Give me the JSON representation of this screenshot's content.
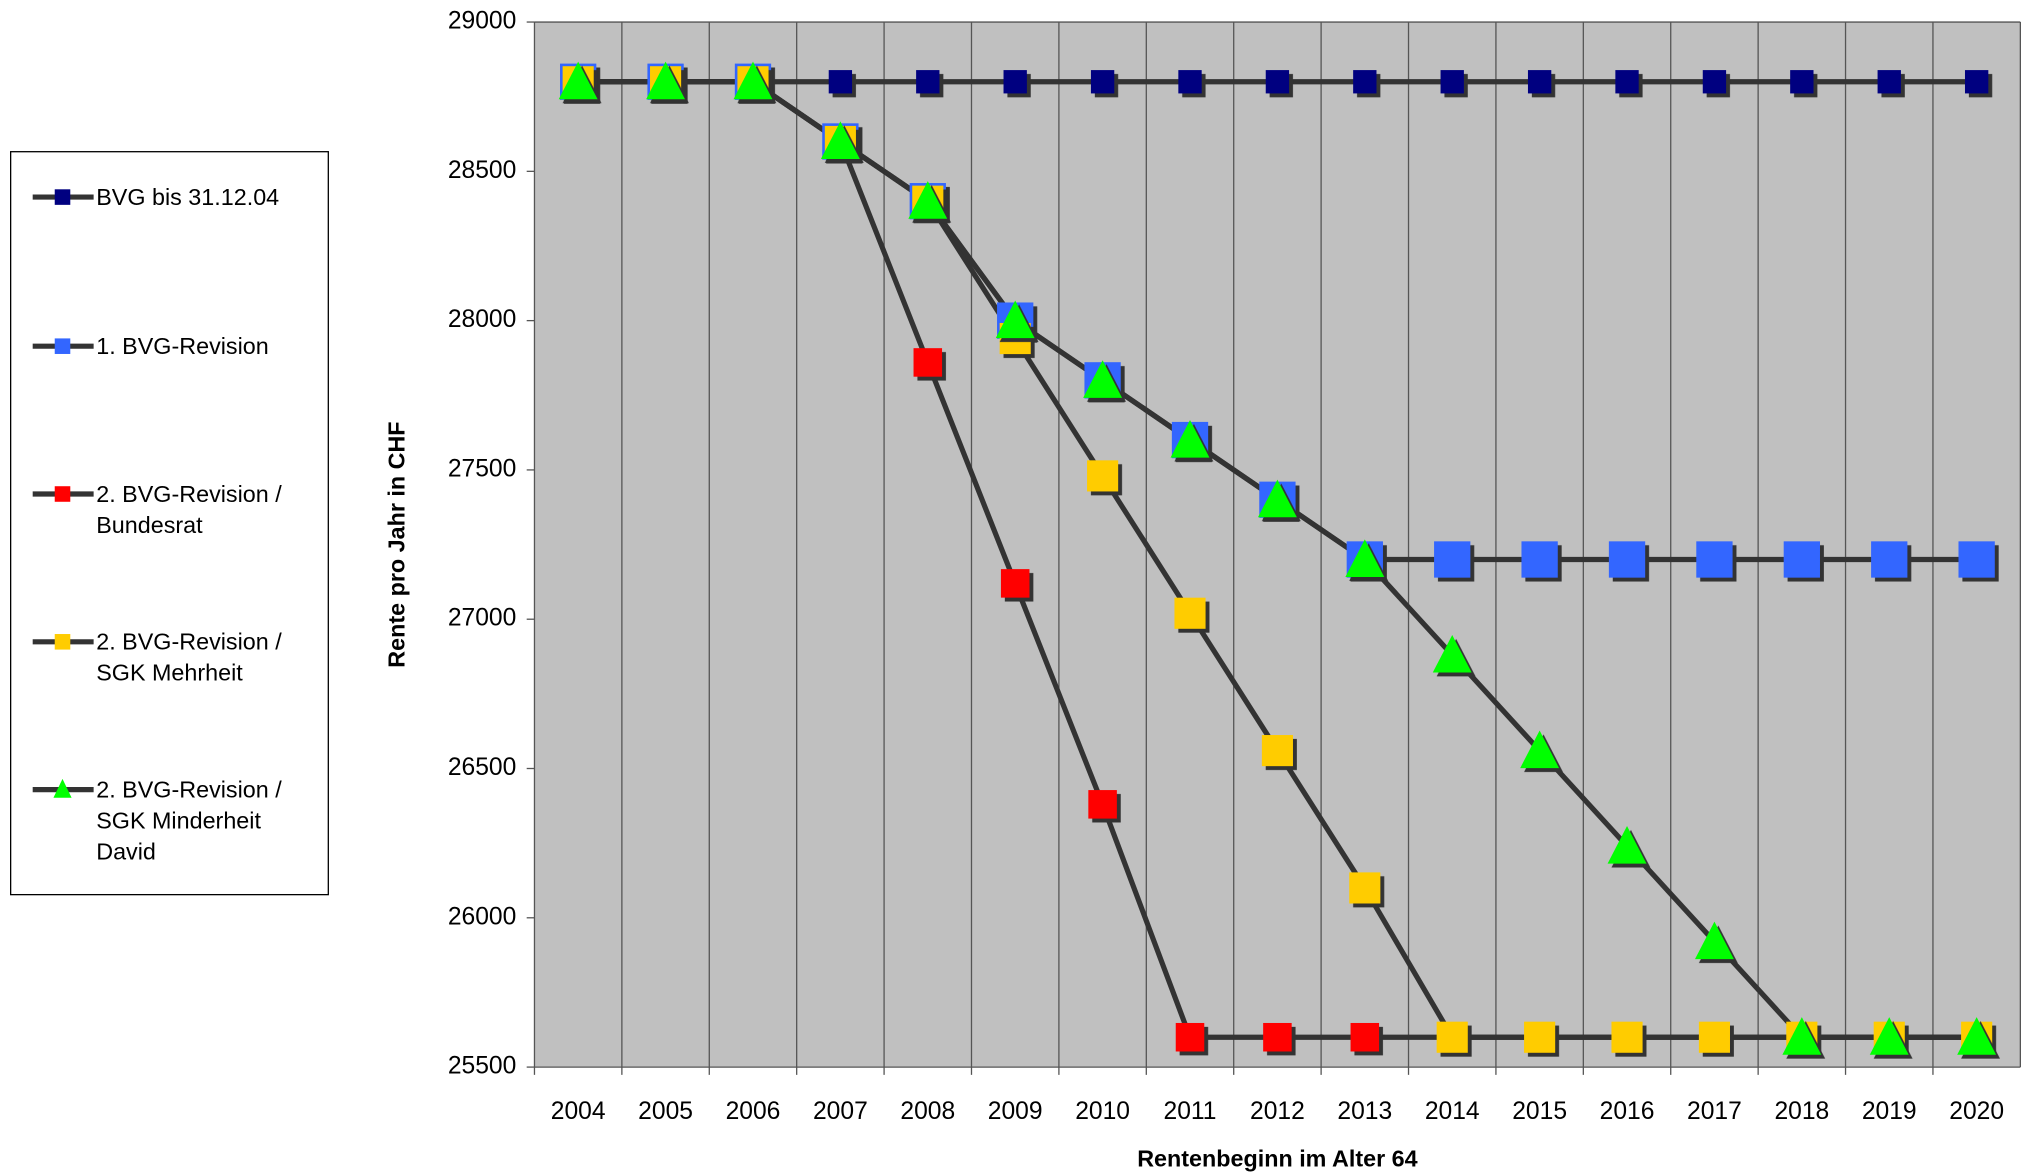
{
  "chart_data": {
    "type": "line",
    "x_label": "Rentenbeginn im Alter 64",
    "y_label": "Rente pro Jahr in CHF",
    "categories": [
      "2004",
      "2005",
      "2006",
      "2007",
      "2008",
      "2009",
      "2010",
      "2011",
      "2012",
      "2013",
      "2014",
      "2015",
      "2016",
      "2017",
      "2018",
      "2019",
      "2020"
    ],
    "ylim": [
      25500,
      29000
    ],
    "yticks": [
      25500,
      26000,
      26500,
      27000,
      27500,
      28000,
      28500,
      29000
    ],
    "line_color": "#333333",
    "series": [
      {
        "name": "BVG bis 31.12.04",
        "color": "#000080",
        "marker": "square",
        "values": [
          28800,
          28800,
          28800,
          28800,
          28800,
          28800,
          28800,
          28800,
          28800,
          28800,
          28800,
          28800,
          28800,
          28800,
          28800,
          28800,
          28800
        ]
      },
      {
        "name": "1. BVG-Revision",
        "color": "#3366ff",
        "marker": "square",
        "values": [
          28800,
          28800,
          28800,
          28600,
          28400,
          28000,
          27800,
          27600,
          27400,
          27200,
          27200,
          27200,
          27200,
          27200,
          27200,
          27200,
          27200
        ]
      },
      {
        "name": "2. BVG-Revision / Bundesrat",
        "color": "#ff0000",
        "marker": "square",
        "values": [
          28800,
          28800,
          28800,
          28600,
          27860,
          27120,
          26380,
          25600,
          25600,
          25600,
          25600,
          25600,
          25600,
          25600,
          25600,
          25600,
          25600
        ]
      },
      {
        "name": "2. BVG-Revision / SGK Mehrheit",
        "color": "#ffcc00",
        "marker": "square",
        "values": [
          28800,
          28800,
          28800,
          28600,
          28400,
          27940,
          27480,
          27020,
          26560,
          26100,
          25600,
          25600,
          25600,
          25600,
          25600,
          25600,
          25600
        ]
      },
      {
        "name": "2. BVG-Revision / SGK Minderheit David",
        "color": "#00ff00",
        "marker": "triangle",
        "values": [
          28800,
          28800,
          28800,
          28600,
          28400,
          28000,
          27800,
          27600,
          27400,
          27200,
          26880,
          26560,
          26240,
          25920,
          25600,
          25600,
          25600
        ]
      }
    ]
  }
}
